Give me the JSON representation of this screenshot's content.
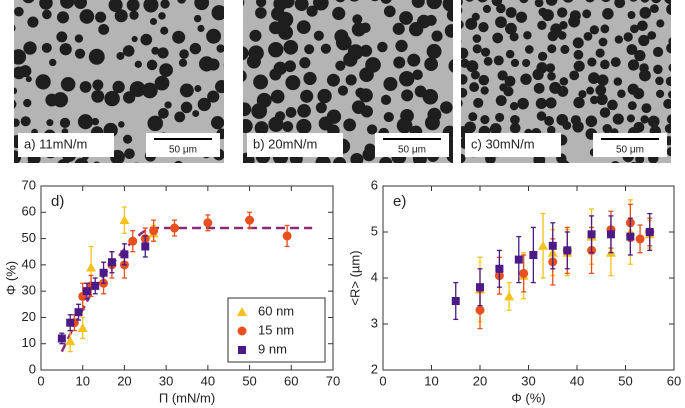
{
  "images": [
    {
      "label": "a) 11mN/m",
      "scale_bar": "50 μm"
    },
    {
      "label": "b) 20mN/m",
      "scale_bar": "50 μm"
    },
    {
      "label": "c) 30mN/m",
      "scale_bar": "50 μm"
    }
  ],
  "chart_data": [
    {
      "type": "scatter",
      "panel_label": "d)",
      "xlabel": "Π (mN/m)",
      "ylabel": "Φ (%)",
      "xlim": [
        0,
        70
      ],
      "xticks": [
        0,
        10,
        20,
        30,
        40,
        50,
        60,
        70
      ],
      "ylim": [
        0,
        70
      ],
      "yticks": [
        0,
        10,
        20,
        30,
        40,
        50,
        60,
        70
      ],
      "legend": "lower right",
      "series": [
        {
          "name": "60 nm",
          "color": "#f5c21b",
          "marker": "triangle",
          "x": [
            7,
            10,
            12,
            20,
            27
          ],
          "values": [
            11,
            16,
            39,
            57,
            52
          ],
          "errors": [
            4,
            4,
            8,
            5,
            3
          ]
        },
        {
          "name": "15 nm",
          "color": "#e8501e",
          "marker": "circle",
          "x": [
            8,
            10,
            12,
            15,
            17,
            20,
            22,
            25,
            27,
            32,
            40,
            50,
            59
          ],
          "values": [
            18,
            28,
            32,
            33,
            40,
            40,
            49,
            50,
            53,
            54,
            56,
            57,
            51
          ],
          "errors": [
            3,
            5,
            4,
            4,
            5,
            5,
            4,
            4,
            4,
            3,
            3,
            3,
            4
          ]
        },
        {
          "name": "9 nm",
          "color": "#4b1a87",
          "marker": "square",
          "x": [
            5,
            7,
            9,
            11,
            13,
            15,
            17,
            20,
            25
          ],
          "values": [
            12,
            18,
            22,
            30,
            32,
            37,
            41,
            44,
            47
          ],
          "errors": [
            2,
            3,
            3,
            3,
            3,
            4,
            4,
            4,
            4
          ]
        }
      ],
      "fit": {
        "color": "#8b2a78",
        "x": [
          5,
          8,
          12,
          16,
          20,
          24,
          26,
          30,
          40,
          50,
          65
        ],
        "values": [
          7,
          17,
          29,
          38,
          46,
          52,
          54,
          54,
          54,
          54,
          54
        ]
      }
    },
    {
      "type": "scatter",
      "panel_label": "e)",
      "xlabel": "Φ (%)",
      "ylabel": "<R> (µm)",
      "xlim": [
        0,
        60
      ],
      "xticks": [
        0,
        10,
        20,
        30,
        40,
        50,
        60
      ],
      "ylim": [
        2,
        6
      ],
      "yticks": [
        2,
        3,
        4,
        5,
        6
      ],
      "series": [
        {
          "color": "#f5c21b",
          "marker": "triangle",
          "x": [
            20,
            26,
            29,
            33,
            35,
            38,
            43,
            47,
            51,
            55
          ],
          "values": [
            3.75,
            3.6,
            4.05,
            4.7,
            4.55,
            4.55,
            4.9,
            4.55,
            5.0,
            4.95
          ],
          "errors": [
            0.7,
            0.3,
            0.5,
            0.7,
            0.5,
            0.5,
            0.6,
            0.5,
            0.7,
            0.3
          ]
        },
        {
          "color": "#e8501e",
          "marker": "circle",
          "x": [
            20,
            24,
            29,
            35,
            38,
            43,
            47,
            51,
            53,
            55
          ],
          "values": [
            3.3,
            4.05,
            4.1,
            4.35,
            4.6,
            4.6,
            5.05,
            5.2,
            4.85,
            5.0
          ],
          "errors": [
            0.4,
            0.4,
            0.4,
            0.5,
            0.5,
            0.5,
            0.4,
            0.4,
            0.3,
            0.3
          ]
        },
        {
          "color": "#4b1a87",
          "marker": "square",
          "x": [
            15,
            20,
            24,
            28,
            31,
            35,
            38,
            43,
            47,
            51,
            55
          ],
          "values": [
            3.5,
            3.8,
            4.2,
            4.4,
            4.5,
            4.7,
            4.6,
            4.95,
            4.95,
            4.9,
            5.0
          ],
          "errors": [
            0.4,
            0.4,
            0.4,
            0.5,
            0.6,
            0.5,
            0.4,
            0.4,
            0.4,
            0.4,
            0.4
          ]
        }
      ]
    }
  ]
}
